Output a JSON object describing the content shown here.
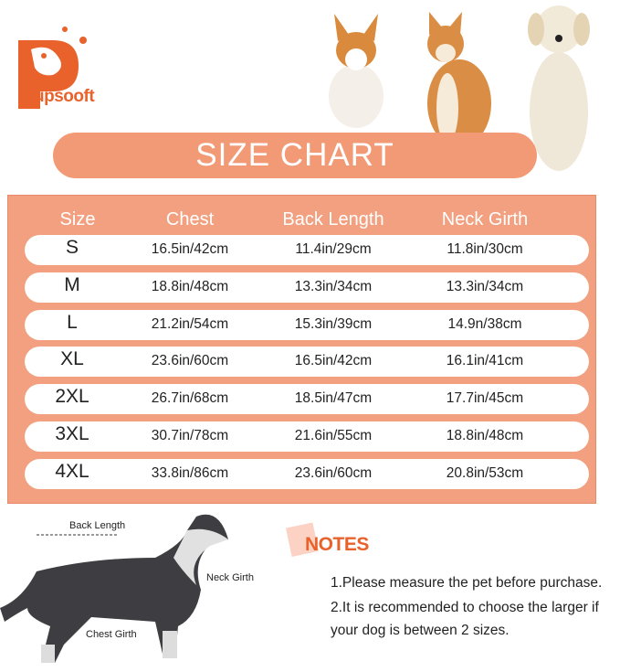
{
  "brand": {
    "name": "upsooft",
    "logo_letter": "P"
  },
  "title": "SIZE  CHART",
  "table": {
    "headers": [
      "Size",
      "Chest",
      "Back Length",
      "Neck Girth"
    ],
    "rows": [
      [
        "S",
        "16.5in/42cm",
        "11.4in/29cm",
        "11.8in/30cm"
      ],
      [
        "M",
        "18.8in/48cm",
        "13.3in/34cm",
        "13.3in/34cm"
      ],
      [
        "L",
        "21.2in/54cm",
        "15.3in/39cm",
        "14.9n/38cm"
      ],
      [
        "XL",
        "23.6in/60cm",
        "16.5in/42cm",
        "16.1in/41cm"
      ],
      [
        "2XL",
        "26.7in/68cm",
        "18.5in/47cm",
        "17.7in/45cm"
      ],
      [
        "3XL",
        "30.7in/78cm",
        "21.6in/55cm",
        "18.8in/48cm"
      ],
      [
        "4XL",
        "33.8in/86cm",
        "23.6in/60cm",
        "20.8in/53cm"
      ]
    ]
  },
  "diagram": {
    "back_length": "Back Length",
    "neck_girth": "Neck Girth",
    "chest_girth": "Chest Girth"
  },
  "notes": {
    "title": "NOTES",
    "items": [
      "1.Please measure the pet before purchase.",
      "2.It is recommended to choose the larger if",
      "your dog is between 2 sizes."
    ]
  },
  "colors": {
    "brand": "#e9622b",
    "table_bg": "#f2a07f",
    "title_bar": "#f29a76"
  }
}
